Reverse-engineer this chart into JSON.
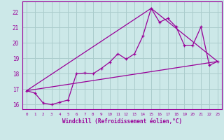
{
  "xlabel": "Windchill (Refroidissement éolien,°C)",
  "xlim": [
    -0.5,
    23.5
  ],
  "ylim": [
    15.7,
    22.7
  ],
  "xticks": [
    0,
    1,
    2,
    3,
    4,
    5,
    6,
    7,
    8,
    9,
    10,
    11,
    12,
    13,
    14,
    15,
    16,
    17,
    18,
    19,
    20,
    21,
    22,
    23
  ],
  "yticks": [
    16,
    17,
    18,
    19,
    20,
    21,
    22
  ],
  "bg_color": "#cce8e8",
  "line_color": "#990099",
  "grid_color": "#aacccc",
  "line1_x": [
    0,
    1,
    2,
    3,
    4,
    5,
    6,
    7,
    8,
    9,
    10,
    11,
    12,
    13,
    14,
    15,
    16,
    17,
    18,
    19,
    20,
    21,
    22,
    23
  ],
  "line1_y": [
    16.9,
    16.75,
    16.1,
    16.0,
    16.15,
    16.3,
    18.0,
    18.05,
    18.0,
    18.35,
    18.75,
    19.3,
    18.95,
    19.3,
    20.45,
    22.25,
    21.35,
    21.6,
    21.05,
    19.85,
    19.85,
    21.05,
    18.55,
    18.8
  ],
  "line2_x": [
    0,
    23
  ],
  "line2_y": [
    16.9,
    18.8
  ],
  "line3_x": [
    0,
    15,
    23
  ],
  "line3_y": [
    16.9,
    22.25,
    18.8
  ],
  "marker": "+"
}
